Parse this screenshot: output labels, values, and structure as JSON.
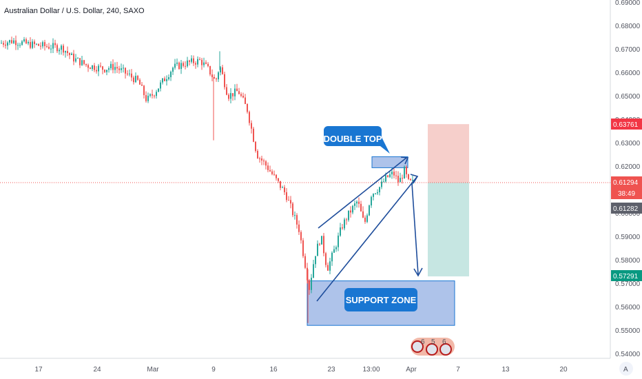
{
  "legend": {
    "symbol": "Australian Dollar / U.S. Dollar, 240, SAXO"
  },
  "colors": {
    "up": "#26a69a",
    "down": "#ef5350",
    "line": "#1e4d9b",
    "callout": "#1976d2",
    "box": "#aec3ea",
    "stop": "#f6cfcb",
    "target": "#c6e6e2"
  },
  "price_tags": {
    "stop": "0.63761",
    "last": "0.61294",
    "countdown": "38:49",
    "current": "0.61282",
    "target": "0.57291"
  },
  "annotations": {
    "double_top": "DOUBLE TOP",
    "support_zone": "SUPPORT ZONE"
  },
  "events_marker": {
    "labels": [
      "6",
      "5",
      "6"
    ]
  },
  "scale_button": "A",
  "chart_data": {
    "type": "candlestick",
    "title": "Australian Dollar / U.S. Dollar, 240, SAXO",
    "ylim": [
      0.54,
      0.69
    ],
    "y_ticks": [
      "0.54000",
      "0.55000",
      "0.56000",
      "0.57000",
      "0.58000",
      "0.59000",
      "0.60000",
      "0.61000",
      "0.62000",
      "0.63000",
      "0.64000",
      "0.65000",
      "0.66000",
      "0.67000",
      "0.68000",
      "0.69000"
    ],
    "x_ticks": [
      "17",
      "24",
      "Mar",
      "9",
      "16",
      "23",
      "13:00",
      "Apr",
      "7",
      "13",
      "20"
    ],
    "price_anchors": [
      [
        0,
        0.6725
      ],
      [
        18,
        0.6735
      ],
      [
        40,
        0.672
      ],
      [
        70,
        0.671
      ],
      [
        90,
        0.6705
      ],
      [
        105,
        0.666
      ],
      [
        125,
        0.663
      ],
      [
        150,
        0.6615
      ],
      [
        165,
        0.6625
      ],
      [
        185,
        0.659
      ],
      [
        200,
        0.656
      ],
      [
        212,
        0.648
      ],
      [
        222,
        0.651
      ],
      [
        235,
        0.656
      ],
      [
        250,
        0.662
      ],
      [
        270,
        0.664
      ],
      [
        290,
        0.665
      ],
      [
        302,
        0.661
      ],
      [
        312,
        0.656
      ],
      [
        318,
        0.663
      ],
      [
        330,
        0.65
      ],
      [
        345,
        0.652
      ],
      [
        358,
        0.644
      ],
      [
        372,
        0.625
      ],
      [
        386,
        0.62
      ],
      [
        400,
        0.614
      ],
      [
        414,
        0.608
      ],
      [
        424,
        0.6
      ],
      [
        433,
        0.593
      ],
      [
        442,
        0.578
      ],
      [
        448,
        0.568
      ],
      [
        456,
        0.582
      ],
      [
        465,
        0.59
      ],
      [
        474,
        0.576
      ],
      [
        483,
        0.583
      ],
      [
        495,
        0.594
      ],
      [
        506,
        0.6
      ],
      [
        518,
        0.605
      ],
      [
        528,
        0.595
      ],
      [
        538,
        0.608
      ],
      [
        550,
        0.611
      ],
      [
        560,
        0.615
      ],
      [
        570,
        0.617
      ],
      [
        578,
        0.613
      ],
      [
        586,
        0.618
      ],
      [
        592,
        0.613
      ],
      [
        598,
        0.6129
      ]
    ],
    "rising_wedge": {
      "upper": [
        [
          2.5,
          0.595
        ],
        [
          5.5,
          0.623
        ]
      ],
      "lower": [
        [
          2.3,
          0.565
        ],
        [
          5.6,
          0.6175
        ]
      ]
    },
    "double_top_zone": [
      0.6195,
      0.622
    ],
    "support_zone": [
      0.552,
      0.571
    ],
    "stop_level": 0.63761,
    "entry_level": 0.61294,
    "target_level": 0.57291
  }
}
